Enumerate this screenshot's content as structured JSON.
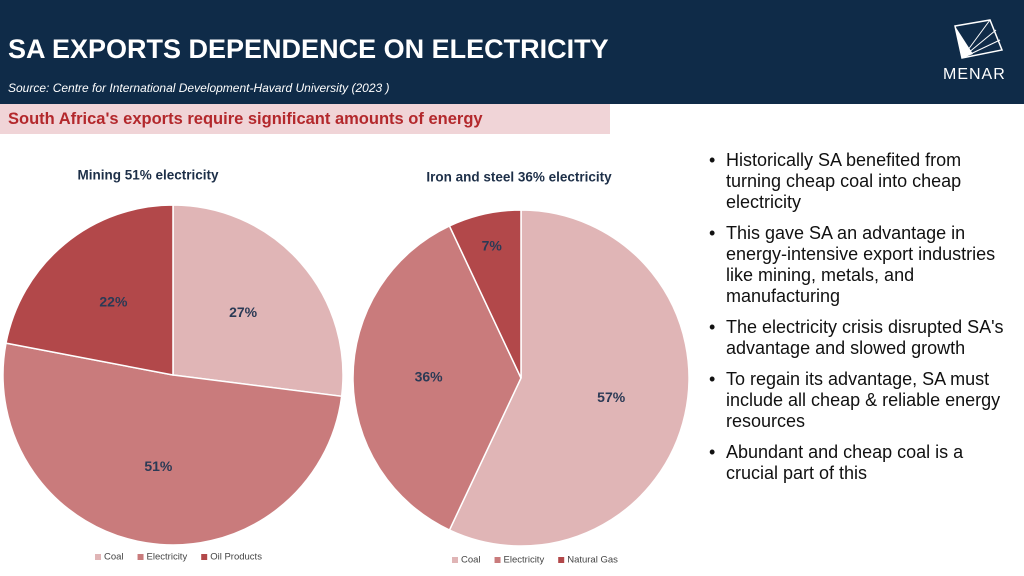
{
  "header": {
    "title": "SA EXPORTS DEPENDENCE ON ELECTRICITY",
    "source": "Source:  Centre for International Development-Havard University (2023 )",
    "logo": "MENAR"
  },
  "banner": "South Africa's exports require significant amounts of energy",
  "chart_data": [
    {
      "type": "pie",
      "title": "Mining 51% electricity",
      "categories": [
        "Coal",
        "Electricity",
        "Oil Products"
      ],
      "values": [
        27,
        51,
        22
      ],
      "value_labels": [
        "27%",
        "51%",
        "22%"
      ],
      "colors": [
        "#e0b5b6",
        "#c97b7c",
        "#b2484a"
      ]
    },
    {
      "type": "pie",
      "title": "Iron and steel 36% electricity",
      "categories": [
        "Coal",
        "Electricity",
        "Natural Gas"
      ],
      "values": [
        57,
        36,
        7
      ],
      "value_labels": [
        "57%",
        "36%",
        "7%"
      ],
      "colors": [
        "#e0b5b6",
        "#c97b7c",
        "#b2484a"
      ]
    }
  ],
  "bullets": [
    "Historically SA benefited from turning  cheap coal  into cheap electricity",
    "This gave SA  an advantage in energy-intensive export  industries  like mining, metals, and manufacturing",
    "The electricity crisis disrupted SA's advantage and slowed growth",
    "To regain its advantage, SA  must include  all cheap & reliable energy resources",
    "Abundant and cheap coal is a crucial part of this"
  ]
}
